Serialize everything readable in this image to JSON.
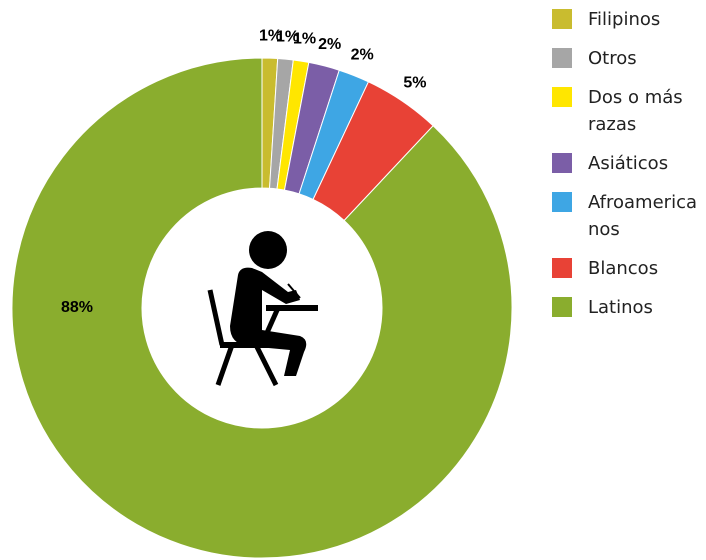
{
  "chart_data": {
    "type": "donut",
    "categories": [
      "Filipinos",
      "Otros",
      "Dos o más razas",
      "Asiáticos",
      "Afroamericanos",
      "Blancos",
      "Latinos"
    ],
    "values": [
      1,
      1,
      1,
      2,
      2,
      5,
      88
    ],
    "value_labels": [
      "1%",
      "1%",
      "1%",
      "2%",
      "2%",
      "5%",
      "88%"
    ],
    "colors": [
      "#c9bc2f",
      "#a6a6a6",
      "#ffe600",
      "#7b5ea7",
      "#3ea6e4",
      "#e84236",
      "#8aad2e"
    ],
    "legend": "right"
  }
}
